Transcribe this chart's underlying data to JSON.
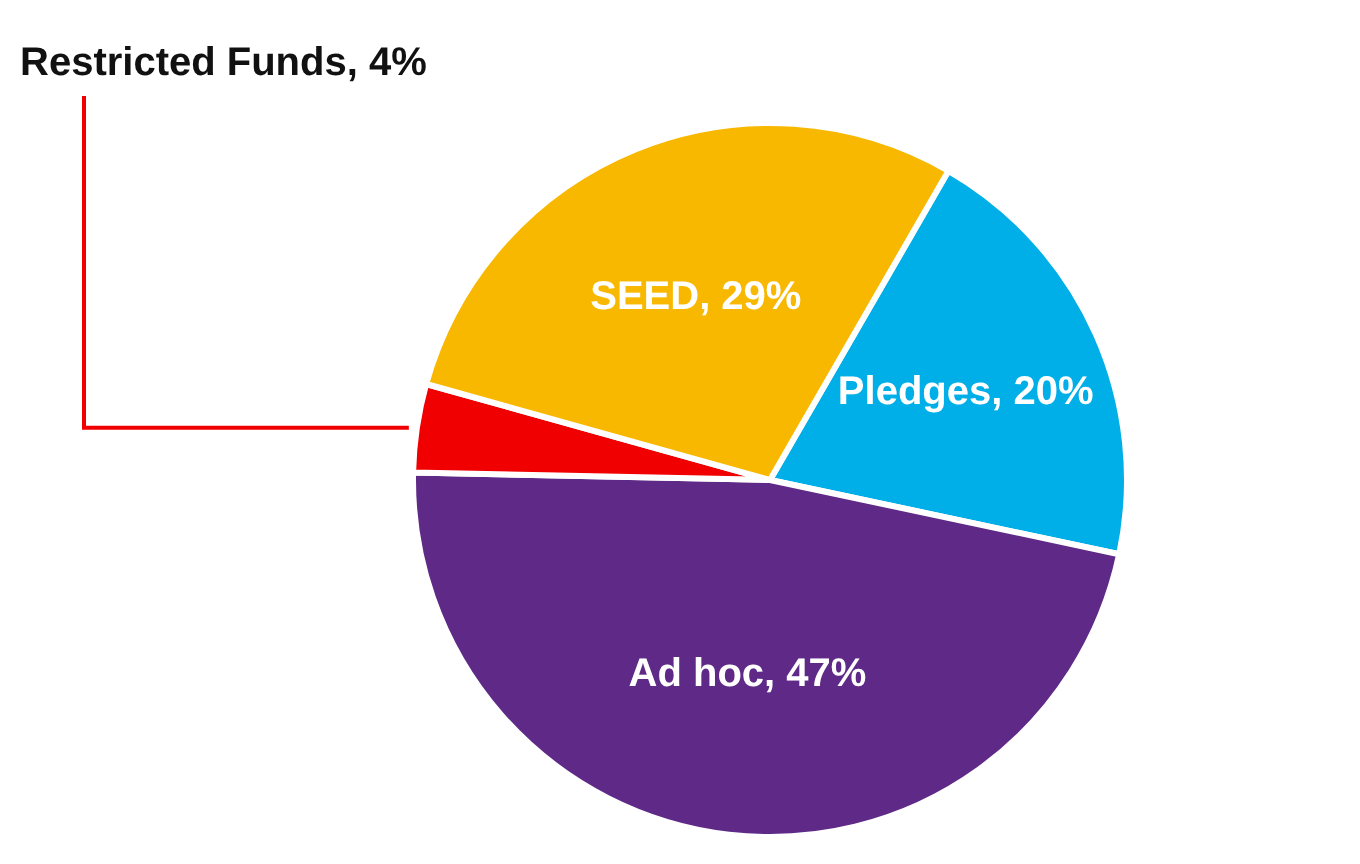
{
  "chart_data": {
    "type": "pie",
    "categories": [
      "Pledges",
      "Ad hoc",
      "Restricted Funds",
      "SEED"
    ],
    "values": [
      20,
      47,
      4,
      29
    ],
    "colors": [
      "#00aee8",
      "#5f2a87",
      "#f00000",
      "#f9b800"
    ],
    "value_labels": [
      "20%",
      "47%",
      "4%",
      "29%"
    ],
    "data_labels": true
  }
}
